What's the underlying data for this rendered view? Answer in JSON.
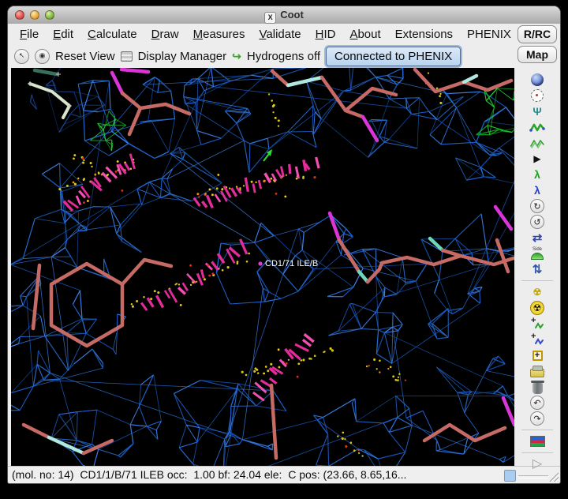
{
  "window": {
    "title": "Coot",
    "titlebar_icon": "X"
  },
  "menubar": {
    "items": [
      {
        "head": "F",
        "tail": "ile"
      },
      {
        "head": "E",
        "tail": "dit"
      },
      {
        "head": "C",
        "tail": "alculate"
      },
      {
        "head": "D",
        "tail": "raw"
      },
      {
        "head": "M",
        "tail": "easures"
      },
      {
        "head": "V",
        "tail": "alidate"
      },
      {
        "head": "H",
        "tail": "ID"
      },
      {
        "head": "A",
        "tail": "bout"
      },
      {
        "head": "",
        "tail": "Extensions"
      },
      {
        "head": "",
        "tail": "PHENIX"
      }
    ]
  },
  "toolbar": {
    "round_button_1_glyph": "↖",
    "round_button_2_glyph": "◉",
    "reset_view_label": "Reset View",
    "display_manager_label": "Display Manager",
    "hydrogens_label": "Hydrogens off",
    "hydrogens_icon_glyph": "↪",
    "connected_label": "Connected to PHENIX"
  },
  "side_buttons": {
    "rrc_label": "R/RC",
    "map_label": "Map"
  },
  "sidebar": {
    "tools": [
      {
        "name": "globe-icon",
        "kind": "sphere"
      },
      {
        "name": "recentre-icon",
        "kind": "target"
      },
      {
        "name": "fix-atoms-icon",
        "kind": "glyph",
        "glyph": "Ψ",
        "color": "#2e9090",
        "size": 14,
        "bold": true
      },
      {
        "name": "real-space-refine-icon",
        "kind": "zig"
      },
      {
        "name": "regularize-zone-icon",
        "kind": "zig2"
      },
      {
        "name": "rigid-body-fit-icon",
        "kind": "glyph",
        "glyph": "▶",
        "color": "#111111",
        "size": 12
      },
      {
        "name": "auto-fit-rotamer-icon",
        "kind": "glyph",
        "glyph": "λ",
        "color": "#1f9e1f",
        "size": 14,
        "bold": true
      },
      {
        "name": "rotamers-icon",
        "kind": "glyph",
        "glyph": "λ",
        "color": "#2a3fbf",
        "size": 14,
        "bold": true
      },
      {
        "name": "edit-chi-angles-icon",
        "kind": "circ",
        "glyph": "↻"
      },
      {
        "name": "torsion-general-icon",
        "kind": "circ",
        "glyph": "↺"
      },
      {
        "name": "flip-peptide-icon",
        "kind": "glyph",
        "glyph": "⇄",
        "color": "#2a47b8",
        "size": 15,
        "bold": true
      },
      {
        "name": "side-chain-flip-icon",
        "kind": "side",
        "label": "Side"
      },
      {
        "name": "jed-flip-icon",
        "kind": "glyph",
        "glyph": "⇅",
        "color": "#3558a8",
        "size": 15,
        "bold": true
      },
      {
        "name": "separator",
        "kind": "sep"
      },
      {
        "name": "mutate-icon",
        "kind": "glyph",
        "glyph": "☢",
        "color": "#c8a800",
        "size": 12,
        "bold": true
      },
      {
        "name": "simple-mutate-icon",
        "kind": "rad",
        "glyph": "☢"
      },
      {
        "name": "add-terminal-residue-icon",
        "kind": "plusatom",
        "color": "#2f9e2f"
      },
      {
        "name": "add-alt-conf-icon",
        "kind": "plusatom",
        "color": "#3848c8"
      },
      {
        "name": "place-atom-icon",
        "kind": "boxplus",
        "glyph": "+"
      },
      {
        "name": "clear-pending-icon",
        "kind": "eraser"
      },
      {
        "name": "delete-item-icon",
        "kind": "trash"
      },
      {
        "name": "undo-icon",
        "kind": "circ",
        "glyph": "↶"
      },
      {
        "name": "redo-icon",
        "kind": "circ",
        "glyph": "↷"
      },
      {
        "name": "separator",
        "kind": "sep"
      },
      {
        "name": "run-refmac-icon",
        "kind": "flag"
      },
      {
        "name": "separator",
        "kind": "sep"
      },
      {
        "name": "run-script-icon",
        "kind": "glyph",
        "glyph": "▷",
        "color": "#9a9a9a",
        "size": 16
      }
    ]
  },
  "canvas": {
    "label": "CD1/71 ILE/B",
    "colors": {
      "mesh": "#1e63cf",
      "mesh_dim": "#143a7d",
      "diff_map": "#1fbf2f",
      "model": "#c66a66",
      "clash": "#ee2fa2",
      "dots": "#d8c818",
      "label": "#ffffff",
      "magenta_bond": "#d935d9",
      "cyan_bond": "#b0e8e0",
      "teal_bond": "#6fd4b8",
      "pale_model": "#d8e4cc",
      "dark_teal": "#38705c",
      "pick_dot": "#d83fd0",
      "arrow_green": "#2ee02e"
    }
  },
  "statusbar": {
    "text": "(mol. no: 14)  CD1/1/B/71 ILEB occ:  1.00 bf: 24.04 ele:  C pos: (23.66, 8.65,16..."
  }
}
